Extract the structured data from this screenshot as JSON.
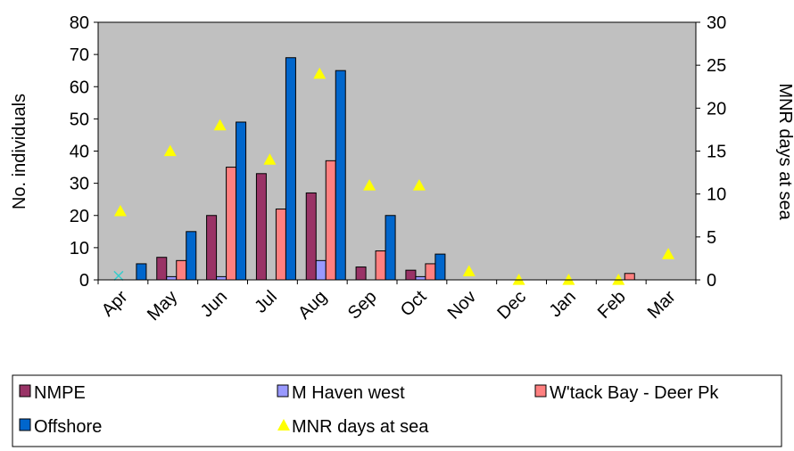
{
  "chart_data": {
    "type": "bar",
    "categories": [
      "Apr",
      "May",
      "Jun",
      "Jul",
      "Aug",
      "Sep",
      "Oct",
      "Nov",
      "Dec",
      "Jan",
      "Feb",
      "Mar"
    ],
    "series": [
      {
        "name": "NMPE",
        "color": "#993366",
        "axis": "left",
        "values": [
          0,
          7,
          20,
          33,
          27,
          4,
          3,
          0,
          0,
          0,
          0,
          0
        ]
      },
      {
        "name": "M Haven west",
        "color": "#9999FF",
        "axis": "left",
        "values": [
          0,
          1,
          1,
          0,
          6,
          0,
          1,
          0,
          0,
          0,
          0,
          0
        ]
      },
      {
        "name": "W'tack Bay - Deer Pk",
        "color": "#FF8080",
        "axis": "left",
        "values": [
          0,
          6,
          35,
          22,
          37,
          9,
          5,
          0,
          0,
          0,
          2,
          0
        ]
      },
      {
        "name": "Offshore",
        "color": "#0066CC",
        "axis": "left",
        "values": [
          5,
          15,
          49,
          69,
          65,
          20,
          8,
          0,
          0,
          0,
          0,
          0
        ]
      },
      {
        "name": "MNR days at sea",
        "color": "#FFFF00",
        "axis": "right",
        "marker": "triangle",
        "values": [
          8,
          15,
          18,
          14,
          24,
          11,
          11,
          1,
          0,
          0,
          0,
          3
        ]
      }
    ],
    "ylabel": "No. individuals",
    "y2label": "MNR days at sea",
    "ylim": [
      0,
      80
    ],
    "y2lim": [
      0,
      30
    ],
    "yticks": [
      0,
      10,
      20,
      30,
      40,
      50,
      60,
      70,
      80
    ],
    "y2ticks": [
      0,
      5,
      10,
      15,
      20,
      25,
      30
    ],
    "plot_background": "#C0C0C0",
    "grid": false,
    "legend_position": "bottom",
    "annotation": {
      "category": "Apr",
      "marker": "x",
      "color": "#33CCCC",
      "value": 1
    }
  }
}
